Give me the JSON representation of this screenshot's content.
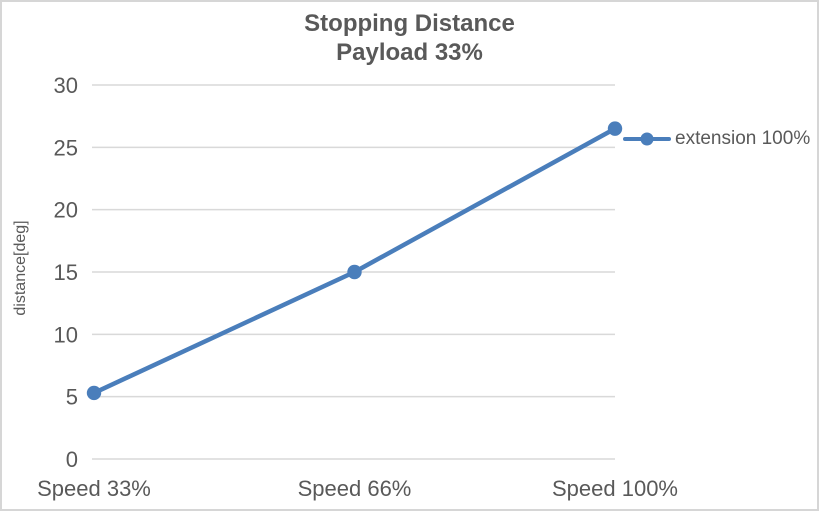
{
  "chart": {
    "title_line1": "Stopping Distance",
    "title_line2": "Payload 33%",
    "y_axis_title": "distance[deg]",
    "legend_label": "extension 100%"
  },
  "colors": {
    "series_blue": "#4A7EBB",
    "gridline": "#D9D9D9",
    "text_gray": "#595959",
    "border_gray": "#D6D6D6",
    "background": "#FFFFFF"
  },
  "chart_data": {
    "type": "line",
    "title": "Stopping Distance Payload 33%",
    "categories": [
      "Speed 33%",
      "Speed 66%",
      "Speed 100%"
    ],
    "series": [
      {
        "name": "extension 100%",
        "values": [
          5.3,
          15,
          26.5
        ]
      }
    ],
    "xlabel": "",
    "ylabel": "distance[deg]",
    "ylim": [
      0,
      30
    ],
    "yticks": [
      0,
      5,
      10,
      15,
      20,
      25,
      30
    ],
    "grid": "horizontal",
    "legend_position": "right",
    "marker": "circle",
    "x_axis_mode": "on-tick-marks"
  }
}
